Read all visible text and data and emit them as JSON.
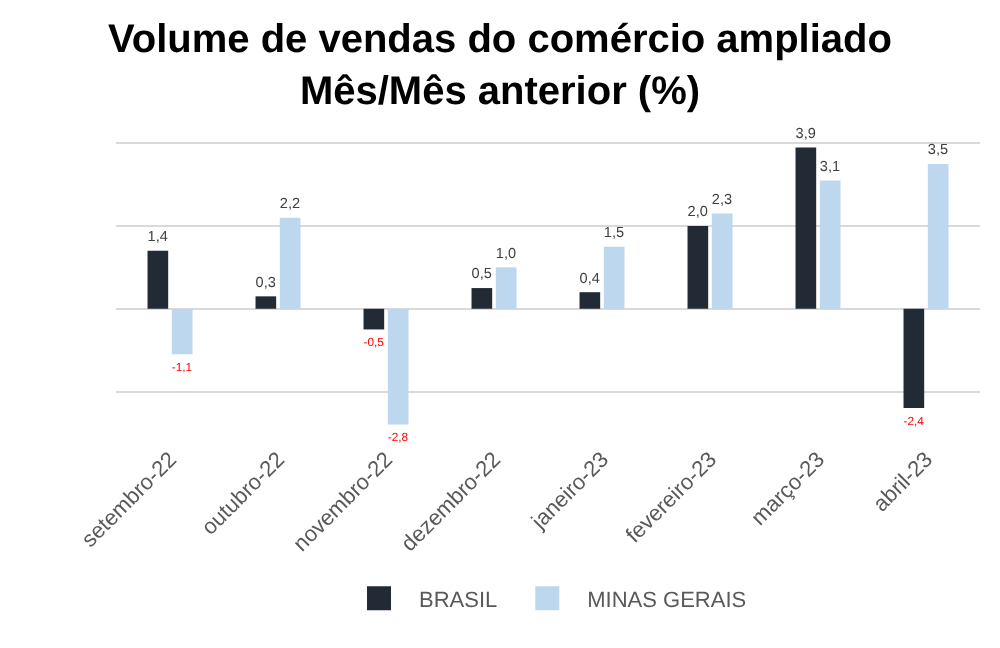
{
  "chart_data": {
    "type": "bar",
    "title": "Volume de vendas do comércio ampliado\nMês/Mês anterior (%)",
    "categories": [
      "setembro-22",
      "outubro-22",
      "novembro-22",
      "dezembro-22",
      "janeiro-23",
      "fevereiro-23",
      "março-23",
      "abril-23"
    ],
    "series": [
      {
        "name": "BRASIL",
        "color": "#222a35",
        "values": [
          1.4,
          0.3,
          -0.5,
          0.5,
          0.4,
          2.0,
          3.9,
          -2.4
        ],
        "value_labels": [
          "1,4",
          "0,3",
          "-0,5",
          "0,5",
          "0,4",
          "2,0",
          "3,9",
          "-2,4"
        ]
      },
      {
        "name": "MINAS GERAIS",
        "color": "#bdd7ee",
        "values": [
          -1.1,
          2.2,
          -2.8,
          1.0,
          1.5,
          2.3,
          3.1,
          3.5
        ],
        "value_labels": [
          "-1,1",
          "2,2",
          "-2,8",
          "1,0",
          "1,5",
          "2,3",
          "3,1",
          "3,5"
        ]
      }
    ],
    "yticks": [
      {
        "value": -2,
        "label": null
      },
      {
        "value": 0,
        "label": null
      },
      {
        "value": 2,
        "label": null
      },
      {
        "value": 4,
        "label": null
      }
    ],
    "tick_labels": "x",
    "grid": "y",
    "legend": "bottom"
  }
}
